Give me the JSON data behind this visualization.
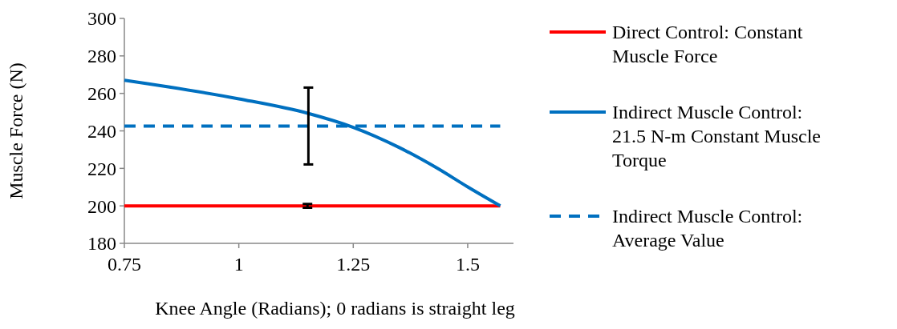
{
  "chart_data": {
    "type": "line",
    "xlabel": "Knee Angle (Radians); 0 radians is straight leg",
    "ylabel": "Muscle Force (N)",
    "xlim": [
      0.75,
      1.6
    ],
    "xticks": [
      0.75,
      1,
      1.25,
      1.5
    ],
    "ylim": [
      180,
      300
    ],
    "yticks": [
      180,
      200,
      220,
      240,
      260,
      280,
      300
    ],
    "grid": false,
    "legend": "right",
    "series": [
      {
        "name": "Direct Control: Constant Muscle Force",
        "color": "#ff0000",
        "x": [
          0.75,
          1.15,
          1.571
        ],
        "values": [
          200,
          200,
          200
        ],
        "errors": [
          null,
          1,
          null
        ]
      },
      {
        "name": "Indirect Muscle Control: 21.5 N-m Constant Muscle Torque",
        "color": "#0070c0",
        "x": [
          0.75,
          1,
          1.152,
          1.25,
          1.349,
          1.434,
          1.5,
          1.571
        ],
        "values": [
          267,
          257.1,
          249.3,
          241.9,
          231.3,
          220,
          210.1,
          200
        ]
      },
      {
        "name": "Indirect Muscle Control: Average Value",
        "color": "#0070c0",
        "line_style": "dashed",
        "x": [
          0.75,
          1.152,
          1.571
        ],
        "values": [
          242.6,
          242.6,
          242.6
        ],
        "errors": [
          null,
          20.5,
          null
        ]
      }
    ]
  }
}
